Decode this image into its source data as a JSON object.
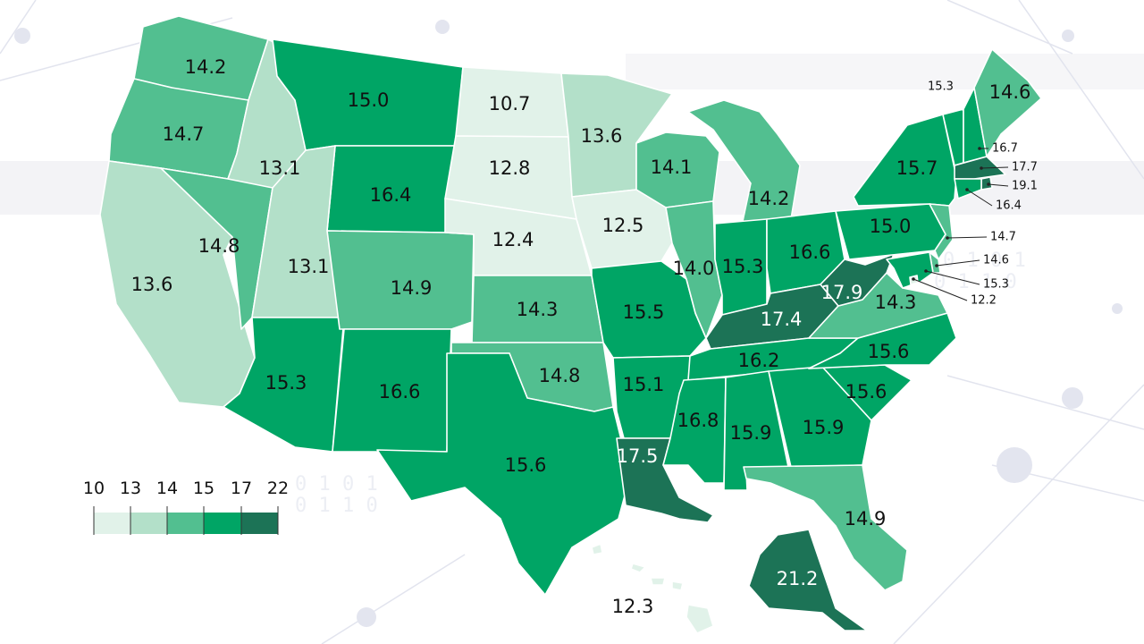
{
  "colors": {
    "c10": "#e1f2e9",
    "c13": "#b3e0c9",
    "c14": "#52bf90",
    "c15": "#19ad74",
    "c17": "#00a565",
    "c22": "#1c7356"
  },
  "legend": {
    "ticks": [
      "10",
      "13",
      "14",
      "15",
      "17",
      "22"
    ]
  },
  "states": [
    {
      "id": "WA",
      "value": "14.2"
    },
    {
      "id": "OR",
      "value": "14.7"
    },
    {
      "id": "CA",
      "value": "13.6"
    },
    {
      "id": "ID",
      "value": "13.1"
    },
    {
      "id": "NV",
      "value": "14.8"
    },
    {
      "id": "MT",
      "value": "15.0"
    },
    {
      "id": "WY",
      "value": "16.4"
    },
    {
      "id": "UT",
      "value": "13.1"
    },
    {
      "id": "AZ",
      "value": "15.3"
    },
    {
      "id": "CO",
      "value": "14.9"
    },
    {
      "id": "NM",
      "value": "16.6"
    },
    {
      "id": "ND",
      "value": "10.7"
    },
    {
      "id": "SD",
      "value": "12.8"
    },
    {
      "id": "NE",
      "value": "12.4"
    },
    {
      "id": "KS",
      "value": "14.3"
    },
    {
      "id": "OK",
      "value": "14.8"
    },
    {
      "id": "TX",
      "value": "15.6"
    },
    {
      "id": "MN",
      "value": "13.6"
    },
    {
      "id": "IA",
      "value": "12.5"
    },
    {
      "id": "MO",
      "value": "15.5"
    },
    {
      "id": "AR",
      "value": "15.1"
    },
    {
      "id": "LA",
      "value": "17.5"
    },
    {
      "id": "WI",
      "value": "14.1"
    },
    {
      "id": "IL",
      "value": "14.0"
    },
    {
      "id": "MI",
      "value": "14.2"
    },
    {
      "id": "IN",
      "value": "15.3"
    },
    {
      "id": "OH",
      "value": "16.6"
    },
    {
      "id": "KY",
      "value": "17.4"
    },
    {
      "id": "TN",
      "value": "16.2"
    },
    {
      "id": "MS",
      "value": "16.8"
    },
    {
      "id": "AL",
      "value": "15.9"
    },
    {
      "id": "GA",
      "value": "15.9"
    },
    {
      "id": "FL",
      "value": "14.9"
    },
    {
      "id": "SC",
      "value": "15.6"
    },
    {
      "id": "NC",
      "value": "15.6"
    },
    {
      "id": "VA",
      "value": "14.3"
    },
    {
      "id": "WV",
      "value": "17.9"
    },
    {
      "id": "PA",
      "value": "15.0"
    },
    {
      "id": "NY",
      "value": "15.7"
    },
    {
      "id": "VT",
      "value": "15.3"
    },
    {
      "id": "NH",
      "value": "16.7"
    },
    {
      "id": "ME",
      "value": "14.6"
    },
    {
      "id": "MA",
      "value": "17.7"
    },
    {
      "id": "RI",
      "value": "19.1"
    },
    {
      "id": "CT",
      "value": "16.4"
    },
    {
      "id": "NJ",
      "value": "14.7"
    },
    {
      "id": "DE",
      "value": "14.6"
    },
    {
      "id": "MD",
      "value": "15.3"
    },
    {
      "id": "DC",
      "value": "12.2"
    },
    {
      "id": "AK",
      "value": "21.2"
    },
    {
      "id": "HI",
      "value": "12.3"
    }
  ]
}
